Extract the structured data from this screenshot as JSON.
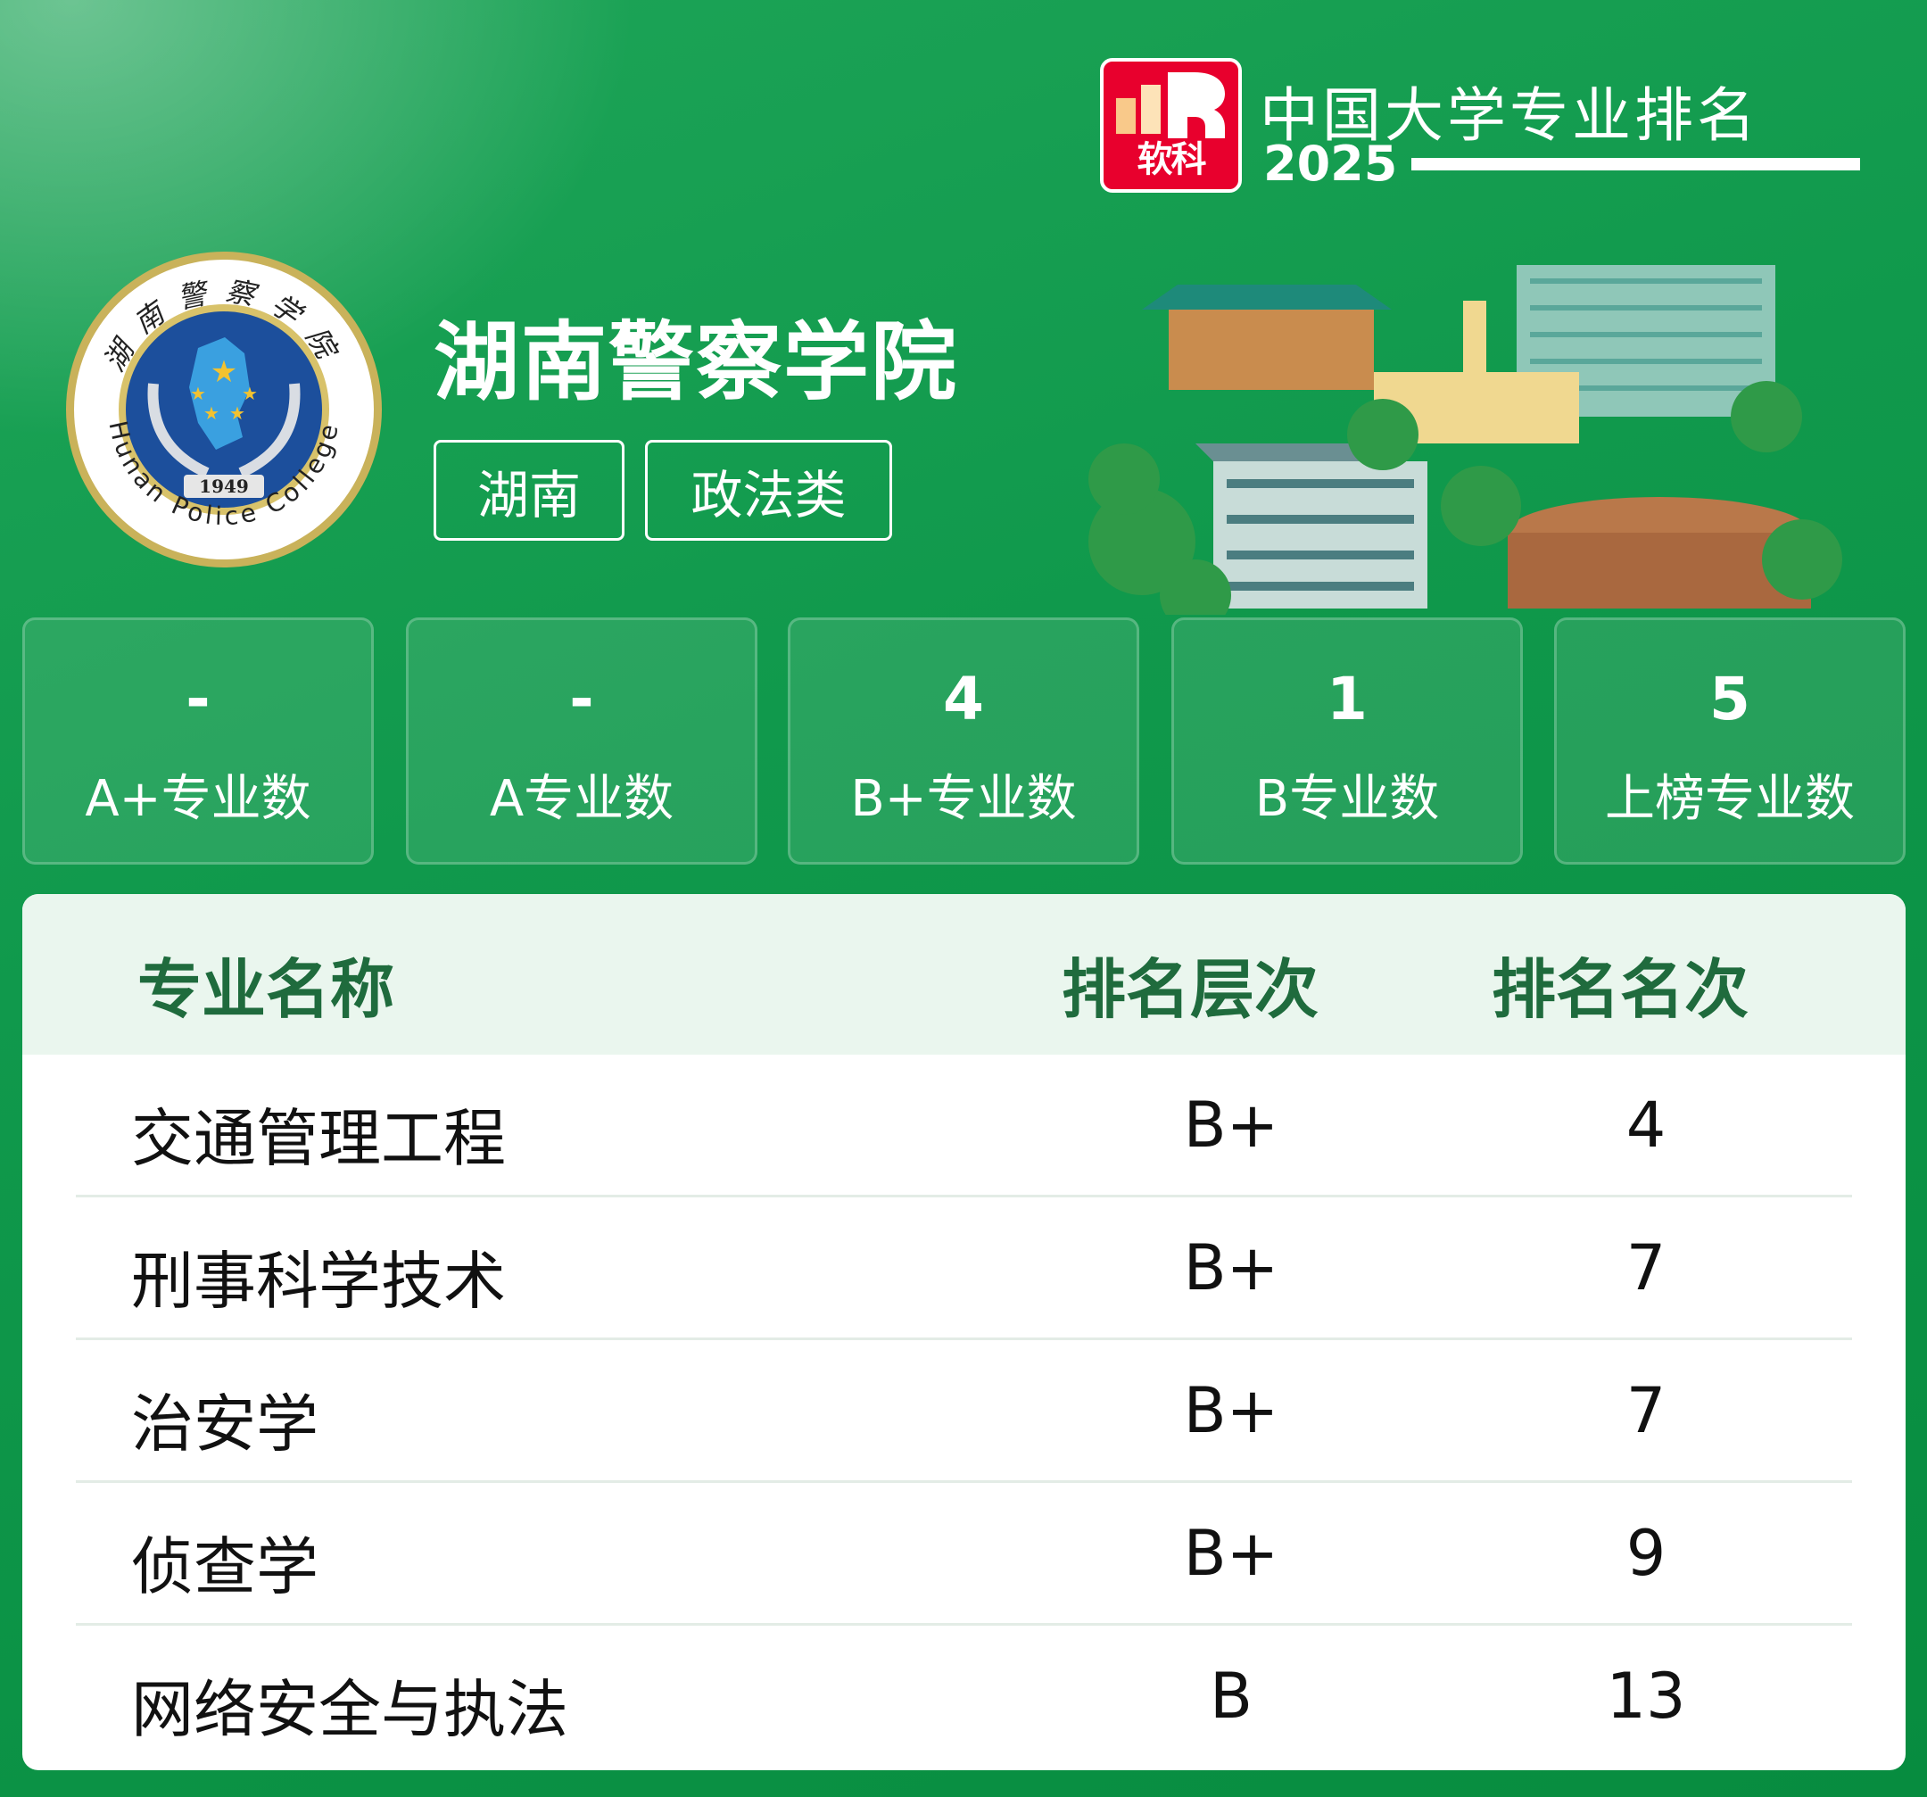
{
  "brand": {
    "badge_text": "软科",
    "title": "中国大学专业排名",
    "year": "2025",
    "colors": {
      "badge": "#e8002d"
    }
  },
  "university": {
    "name": "湖南警察学院",
    "seal_text": "湖南警察学院",
    "seal_english": "Hunan Police College",
    "seal_year": "1949",
    "tags": [
      "湖南",
      "政法类"
    ]
  },
  "stats": [
    {
      "value": "-",
      "label": "A+专业数"
    },
    {
      "value": "-",
      "label": "A专业数"
    },
    {
      "value": "4",
      "label": "B+专业数"
    },
    {
      "value": "1",
      "label": "B专业数"
    },
    {
      "value": "5",
      "label": "上榜专业数"
    }
  ],
  "table": {
    "headers": [
      "专业名称",
      "排名层次",
      "排名名次"
    ],
    "rows": [
      {
        "name": "交通管理工程",
        "level": "B+",
        "rank": "4"
      },
      {
        "name": "刑事科学技术",
        "level": "B+",
        "rank": "7"
      },
      {
        "name": "治安学",
        "level": "B+",
        "rank": "7"
      },
      {
        "name": "侦查学",
        "level": "B+",
        "rank": "9"
      },
      {
        "name": "网络安全与执法",
        "level": "B",
        "rank": "13"
      }
    ]
  }
}
